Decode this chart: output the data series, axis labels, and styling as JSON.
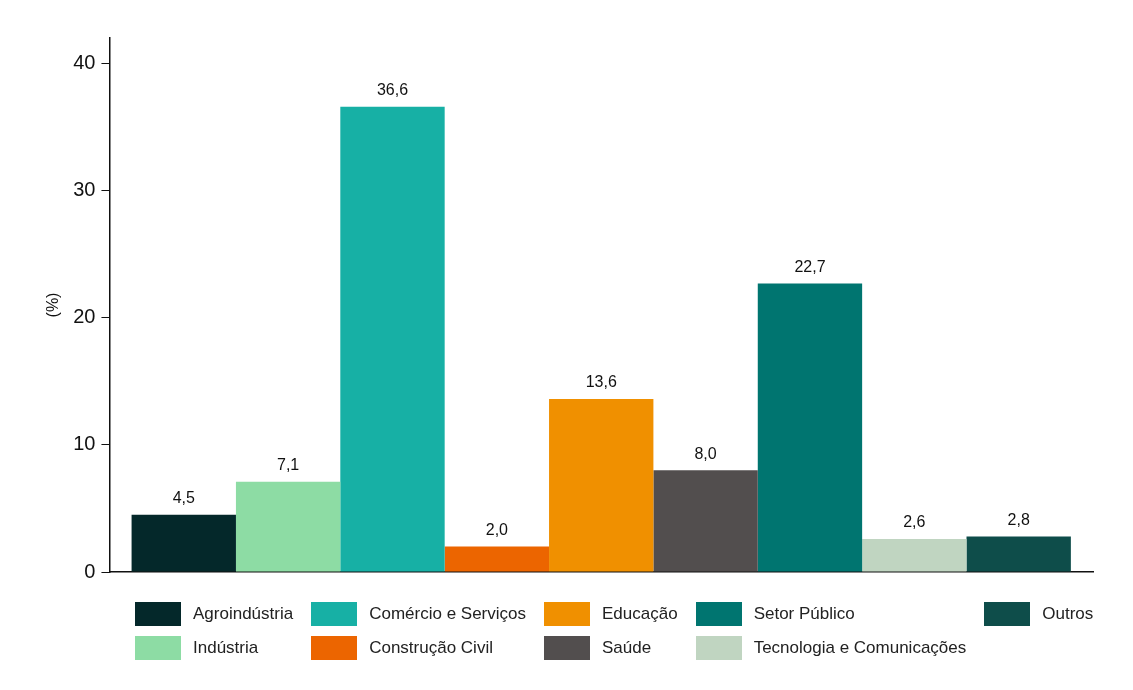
{
  "chart_data": {
    "type": "bar",
    "ylabel": "(%)",
    "categories": [
      null
    ],
    "series": [
      {
        "name": "Agroindústria",
        "color": "#04282a",
        "values": [
          4.5
        ],
        "value_labels": [
          "4,5"
        ]
      },
      {
        "name": "Indústria",
        "color": "#8ddca4",
        "values": [
          7.1
        ],
        "value_labels": [
          "7,1"
        ]
      },
      {
        "name": "Comércio e Serviços",
        "color": "#17b0a5",
        "values": [
          36.6
        ],
        "value_labels": [
          "36,6"
        ]
      },
      {
        "name": "Construção Civil",
        "color": "#ec6500",
        "values": [
          2.0
        ],
        "value_labels": [
          "2,0"
        ]
      },
      {
        "name": "Educação",
        "color": "#f09000",
        "values": [
          13.6
        ],
        "value_labels": [
          "13,6"
        ]
      },
      {
        "name": "Saúde",
        "color": "#524e4e",
        "values": [
          8.0
        ],
        "value_labels": [
          "8,0"
        ]
      },
      {
        "name": "Setor Público",
        "color": "#007570",
        "values": [
          22.7
        ],
        "value_labels": [
          "22,7"
        ]
      },
      {
        "name": "Tecnologia e Comunicações",
        "color": "#c0d5c1",
        "values": [
          2.6
        ],
        "value_labels": [
          "2,6"
        ]
      },
      {
        "name": "Outros",
        "color": "#0e4d4a",
        "values": [
          2.8
        ],
        "value_labels": [
          "2,8"
        ]
      }
    ],
    "ylim": [
      0,
      42
    ],
    "yticks": [
      0,
      10,
      20,
      30,
      40
    ],
    "grid": false,
    "legend": "bottom",
    "tick_labels": "y"
  }
}
